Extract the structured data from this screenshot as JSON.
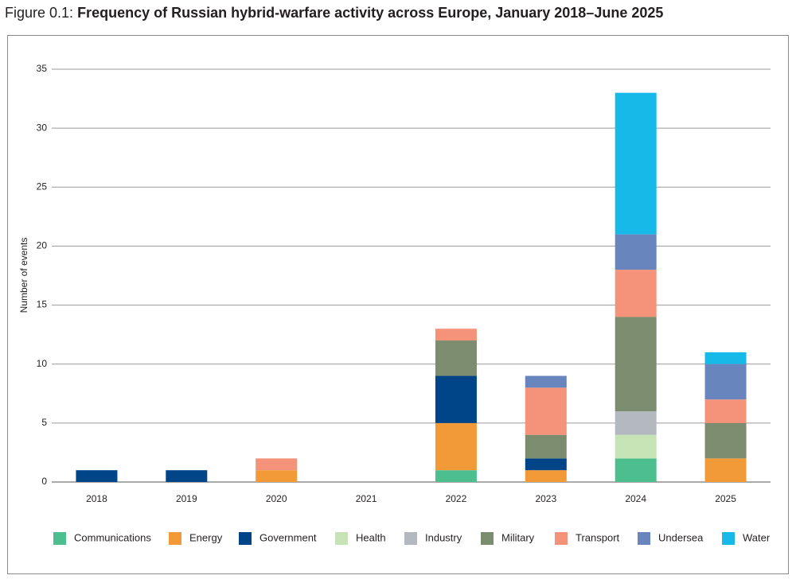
{
  "chart_data": {
    "type": "bar",
    "stacked": true,
    "figure_label": "Figure 0.1:",
    "title": "Frequency of Russian hybrid-warfare activity across Europe, January 2018–June 2025",
    "y_label": "Number of events",
    "categories": [
      "2018",
      "2019",
      "2020",
      "2021",
      "2022",
      "2023",
      "2024",
      "2025"
    ],
    "series": [
      {
        "name": "Communications",
        "color": "#4dbf8f",
        "values": [
          0,
          0,
          0,
          0,
          1,
          0,
          2,
          0
        ]
      },
      {
        "name": "Energy",
        "color": "#f29a38",
        "values": [
          0,
          0,
          1,
          0,
          4,
          1,
          0,
          2
        ]
      },
      {
        "name": "Government",
        "color": "#004587",
        "values": [
          1,
          1,
          0,
          0,
          4,
          1,
          0,
          0
        ]
      },
      {
        "name": "Health",
        "color": "#c5e3b5",
        "values": [
          0,
          0,
          0,
          0,
          0,
          0,
          2,
          0
        ]
      },
      {
        "name": "Industry",
        "color": "#b3b9bf",
        "values": [
          0,
          0,
          0,
          0,
          0,
          0,
          2,
          0
        ]
      },
      {
        "name": "Military",
        "color": "#7c8c6e",
        "values": [
          0,
          0,
          0,
          0,
          3,
          2,
          8,
          3
        ]
      },
      {
        "name": "Transport",
        "color": "#f4937a",
        "values": [
          0,
          0,
          1,
          0,
          1,
          4,
          4,
          2
        ]
      },
      {
        "name": "Undersea",
        "color": "#6885bd",
        "values": [
          0,
          0,
          0,
          0,
          0,
          1,
          3,
          3
        ]
      },
      {
        "name": "Water",
        "color": "#17b9e8",
        "values": [
          0,
          0,
          0,
          0,
          0,
          0,
          12,
          1
        ]
      }
    ],
    "ylim": [
      0,
      35
    ],
    "yticks": [
      0,
      5,
      10,
      15,
      20,
      25,
      30,
      35
    ],
    "grid": true,
    "legend": "bottom"
  }
}
